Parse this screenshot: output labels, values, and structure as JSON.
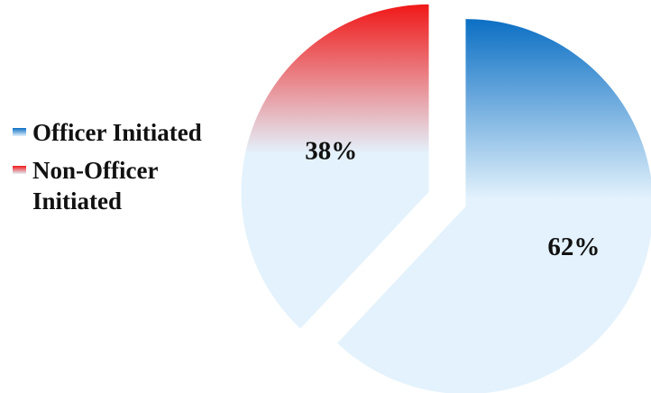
{
  "chart_data": {
    "type": "pie",
    "title": "",
    "categories": [
      "Officer Initiated",
      "Non-Officer Initiated"
    ],
    "values": [
      62,
      38
    ],
    "data_labels": [
      "62%",
      "38%"
    ],
    "legend": "left",
    "colors": {
      "Officer Initiated": {
        "top": "#0b6fc4",
        "bottom": "#e3f2fc"
      },
      "Non-Officer Initiated": {
        "top": "#f01818",
        "bottom": "#e3f2fc"
      }
    }
  }
}
